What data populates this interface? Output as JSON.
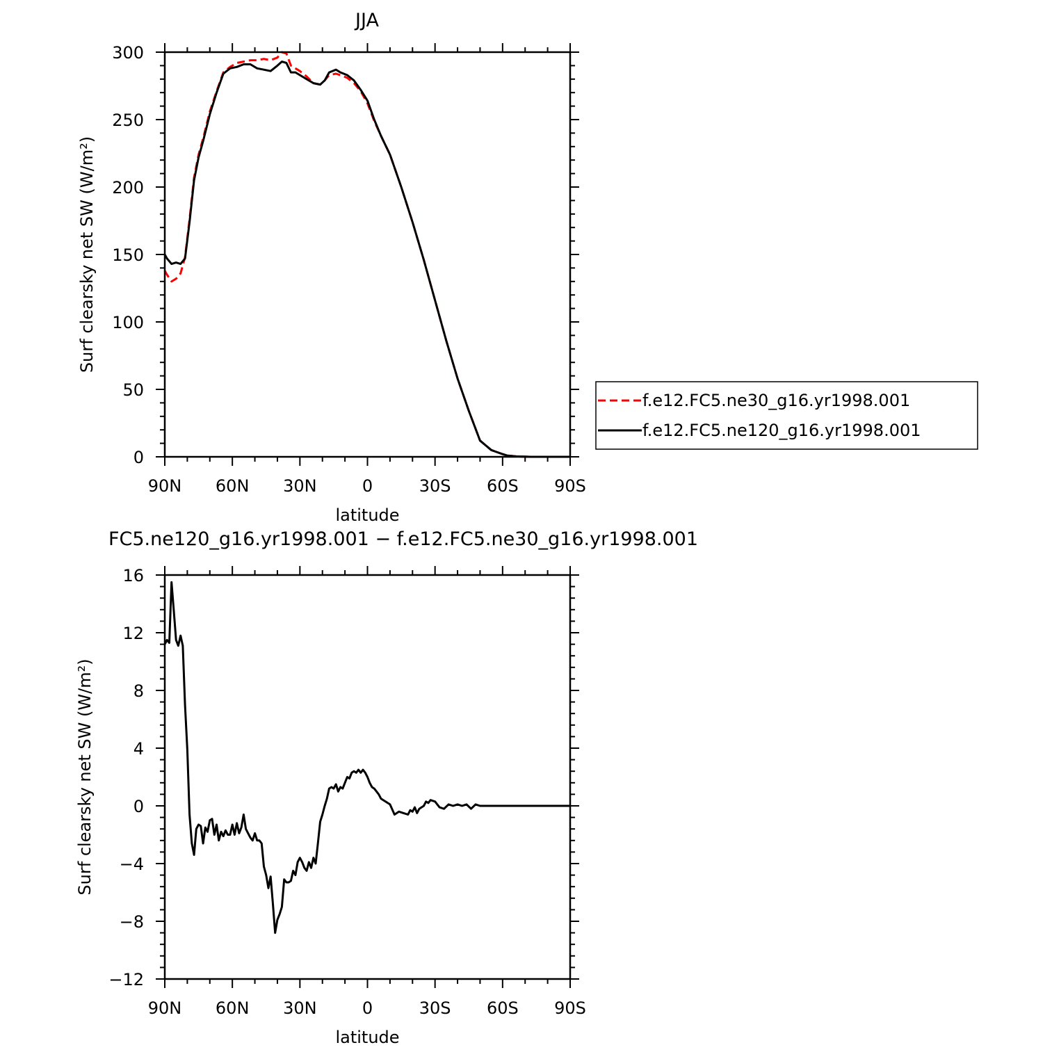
{
  "chart_data": [
    {
      "type": "line",
      "title": "JJA",
      "xlabel": "latitude",
      "ylabel": "Surf clearsky net SW (W/m²)",
      "xlim": [
        90,
        -90
      ],
      "ylim": [
        0,
        300
      ],
      "xticks": [
        90,
        60,
        30,
        0,
        -30,
        -60,
        -90
      ],
      "xtick_labels": [
        "90N",
        "60N",
        "30N",
        "0",
        "30S",
        "60S",
        "90S"
      ],
      "yticks": [
        0,
        50,
        100,
        150,
        200,
        250,
        300
      ],
      "ytick_labels": [
        "0",
        "50",
        "100",
        "150",
        "200",
        "250",
        "300"
      ],
      "legend_position": "right",
      "series": [
        {
          "name": "f.e12.FC5.ne30_g16.yr1998.001",
          "color": "#ff0000",
          "dash": "dashed",
          "x": [
            90,
            89,
            87,
            85,
            83,
            81,
            79,
            77,
            75,
            73,
            70,
            67,
            64,
            61,
            58,
            55,
            52,
            49,
            46,
            43,
            40,
            38,
            36,
            34,
            32,
            30,
            27,
            24,
            21,
            19,
            17,
            14,
            12,
            9,
            6,
            3,
            0,
            -3,
            -6,
            -10,
            -15,
            -20,
            -25,
            -30,
            -35,
            -40,
            -45,
            -50,
            -55,
            -60,
            -62,
            -64,
            -66,
            -68,
            -70,
            -73,
            -76,
            -80,
            -85,
            -90
          ],
          "y": [
            138,
            135,
            130,
            132,
            136,
            148,
            176,
            207,
            224,
            236,
            256,
            271,
            285,
            289,
            292,
            293,
            294,
            294,
            295,
            294,
            296,
            300,
            299,
            290,
            288,
            286,
            282,
            277,
            276,
            279,
            283,
            284,
            283,
            281,
            277,
            271,
            262,
            249,
            238,
            224,
            200,
            174,
            146,
            116,
            86,
            58,
            34,
            12,
            5,
            2,
            1,
            0.6,
            0.3,
            0.2,
            0.1,
            0,
            0,
            0,
            0,
            0
          ]
        },
        {
          "name": "f.e12.FC5.ne120_g16.yr1998.001",
          "color": "#000000",
          "dash": "solid",
          "x": [
            90,
            89,
            87,
            85,
            83,
            81,
            79,
            77,
            75,
            73,
            70,
            67,
            64,
            61,
            58,
            55,
            52,
            49,
            46,
            43,
            40,
            38,
            36,
            34,
            32,
            30,
            27,
            24,
            21,
            19,
            17,
            14,
            12,
            9,
            6,
            3,
            0,
            -3,
            -6,
            -10,
            -15,
            -20,
            -25,
            -30,
            -35,
            -40,
            -45,
            -50,
            -55,
            -60,
            -62,
            -64,
            -66,
            -68,
            -70,
            -73,
            -76,
            -80,
            -85,
            -90
          ],
          "y": [
            150,
            147,
            143,
            144,
            143,
            147,
            174,
            205,
            222,
            234,
            254,
            270,
            284,
            288,
            289,
            291,
            291,
            288,
            287,
            286,
            290,
            293,
            292,
            285,
            285,
            283,
            280,
            277,
            276,
            279,
            285,
            287,
            285,
            283,
            279,
            272,
            264,
            250,
            238,
            224,
            200,
            174,
            146,
            116,
            86,
            58,
            34,
            12,
            5,
            2,
            1,
            0.6,
            0.3,
            0.2,
            0.1,
            0,
            0,
            0,
            0,
            0
          ]
        }
      ]
    },
    {
      "type": "line",
      "title": "FC5.ne120_g16.yr1998.001 − f.e12.FC5.ne30_g16.yr1998.001",
      "xlabel": "latitude",
      "ylabel": "Surf clearsky net SW (W/m²)",
      "xlim": [
        90,
        -90
      ],
      "ylim": [
        -12,
        16
      ],
      "xticks": [
        90,
        60,
        30,
        0,
        -30,
        -60,
        -90
      ],
      "xtick_labels": [
        "90N",
        "60N",
        "30N",
        "0",
        "30S",
        "60S",
        "90S"
      ],
      "yticks": [
        16,
        12,
        8,
        4,
        0,
        -4,
        -8,
        -12
      ],
      "ytick_labels": [
        "16",
        "12",
        "8",
        "4",
        "0",
        "−4",
        "−8",
        "−12"
      ],
      "series": [
        {
          "color": "#000000",
          "dash": "solid",
          "x": [
            90,
            89,
            88,
            87,
            86,
            85,
            84,
            83,
            82,
            81,
            80,
            79,
            78,
            77,
            76,
            75,
            74,
            73,
            72,
            71,
            70,
            69,
            68,
            67,
            66,
            65,
            64,
            63,
            62,
            61,
            60,
            59,
            58,
            57,
            56,
            55,
            54,
            53,
            52,
            51,
            50,
            49,
            48,
            47,
            46,
            45,
            44,
            43,
            42,
            41,
            40,
            39,
            38,
            37,
            36,
            35,
            34,
            33,
            32,
            31,
            30,
            29,
            28,
            27,
            26,
            25,
            24,
            23,
            22,
            21,
            20,
            19,
            18,
            17,
            16,
            15,
            14,
            13,
            12,
            11,
            10,
            9,
            8,
            7,
            6,
            5,
            4,
            3,
            2,
            1,
            0,
            -1,
            -2,
            -3,
            -4,
            -5,
            -6,
            -8,
            -10,
            -12,
            -14,
            -16,
            -18,
            -19,
            -20,
            -21,
            -22,
            -23,
            -24,
            -25,
            -26,
            -27,
            -28,
            -30,
            -32,
            -34,
            -36,
            -38,
            -40,
            -42,
            -44,
            -46,
            -48,
            -50,
            -52,
            -54,
            -56,
            -58,
            -60,
            -62,
            -64,
            -66,
            -68,
            -70,
            -75,
            -80,
            -90
          ],
          "y": [
            11.2,
            11.5,
            11.3,
            15.5,
            13.5,
            11.5,
            11.1,
            11.8,
            11.1,
            7.0,
            3.9,
            -0.6,
            -2.6,
            -3.4,
            -1.6,
            -1.3,
            -1.4,
            -2.6,
            -1.5,
            -1.8,
            -1.0,
            -0.9,
            -2.0,
            -1.3,
            -2.4,
            -1.8,
            -2.1,
            -1.7,
            -2.0,
            -2.0,
            -1.3,
            -2.0,
            -1.2,
            -1.9,
            -1.5,
            -0.6,
            -1.6,
            -1.9,
            -2.2,
            -2.4,
            -1.9,
            -2.4,
            -2.4,
            -2.6,
            -4.2,
            -4.8,
            -5.7,
            -4.9,
            -6.8,
            -8.8,
            -7.9,
            -7.5,
            -7.0,
            -5.1,
            -5.3,
            -5.3,
            -5.2,
            -4.5,
            -4.8,
            -3.9,
            -3.6,
            -3.9,
            -4.3,
            -4.5,
            -3.9,
            -4.3,
            -3.6,
            -4.0,
            -2.6,
            -1.1,
            -0.6,
            0.0,
            0.5,
            1.2,
            1.3,
            1.2,
            1.5,
            1.0,
            1.3,
            1.2,
            1.6,
            2.0,
            1.9,
            2.3,
            2.4,
            2.3,
            2.5,
            2.3,
            2.5,
            2.3,
            2.0,
            1.6,
            1.3,
            1.2,
            1.0,
            0.8,
            0.5,
            0.3,
            0.1,
            -0.6,
            -0.4,
            -0.5,
            -0.6,
            -0.3,
            -0.4,
            -0.1,
            -0.5,
            -0.2,
            -0.1,
            0.0,
            0.3,
            0.2,
            0.4,
            0.3,
            -0.1,
            -0.2,
            0.1,
            0.0,
            0.1,
            0.0,
            0.1,
            -0.2,
            0.1,
            0.0,
            0.0,
            0.0,
            0.0,
            0.0,
            0.0,
            0.0,
            0.0,
            0.0,
            0.0,
            0.0,
            0.0,
            0.0,
            0.0
          ]
        }
      ]
    }
  ]
}
